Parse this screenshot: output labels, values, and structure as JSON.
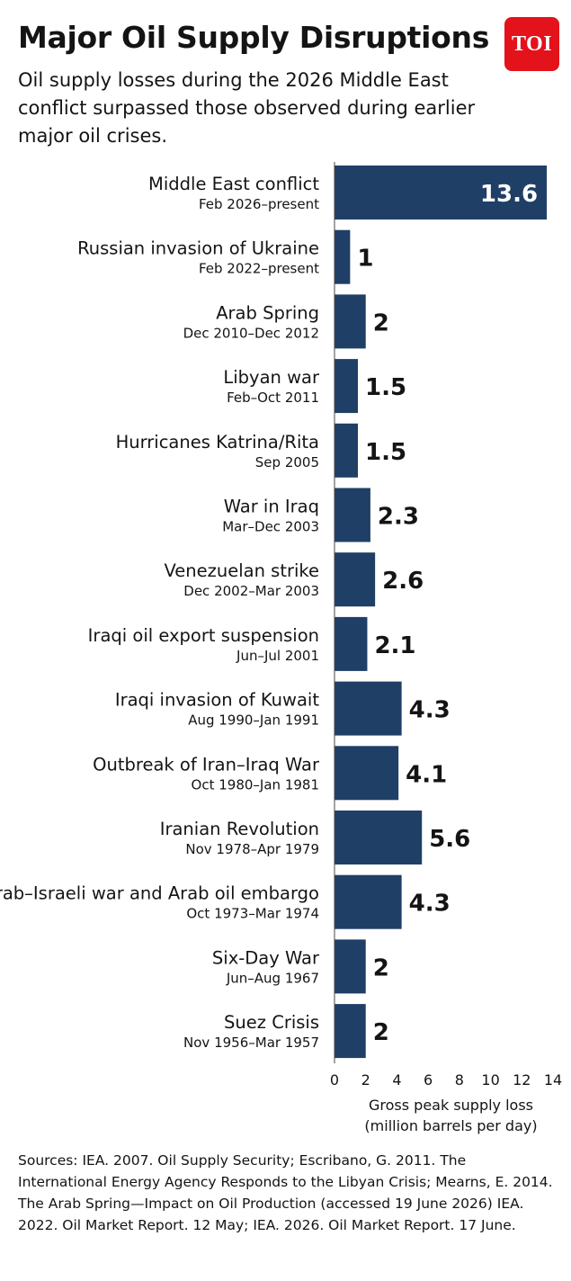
{
  "header": {
    "title": "Major Oil Supply Disruptions",
    "subtitle": "Oil supply losses during the 2026 Middle East conflict surpassed those observed during earlier major oil crises.",
    "logo_text": "TOI"
  },
  "chart_data": {
    "type": "bar",
    "orientation": "horizontal",
    "categories": [
      "Middle East conflict",
      "Russian invasion of Ukraine",
      "Arab Spring",
      "Libyan war",
      "Hurricanes Katrina/Rita",
      "War in Iraq",
      "Venezuelan strike",
      "Iraqi oil export suspension",
      "Iraqi invasion of Kuwait",
      "Outbreak of Iran–Iraq War",
      "Iranian Revolution",
      "Arab–Israeli war and Arab oil embargo",
      "Six-Day War",
      "Suez Crisis"
    ],
    "periods": [
      "Feb 2026–present",
      "Feb 2022–present",
      "Dec 2010–Dec 2012",
      "Feb–Oct 2011",
      "Sep 2005",
      "Mar–Dec 2003",
      "Dec 2002–Mar 2003",
      "Jun–Jul 2001",
      "Aug 1990–Jan 1991",
      "Oct 1980–Jan 1981",
      "Nov 1978–Apr 1979",
      "Oct 1973–Mar 1974",
      "Jun–Aug 1967",
      "Nov 1956–Mar 1957"
    ],
    "values": [
      13.6,
      1,
      2,
      1.5,
      1.5,
      2.3,
      2.6,
      2.1,
      4.3,
      4.1,
      5.6,
      4.3,
      2,
      2
    ],
    "value_labels": [
      "13.6",
      "1",
      "2",
      "1.5",
      "1.5",
      "2.3",
      "2.6",
      "2.1",
      "4.3",
      "4.1",
      "5.6",
      "4.3",
      "2",
      "2"
    ],
    "xlabel_line1": "Gross peak supply loss",
    "xlabel_line2": "(million barrels per day)",
    "xlim": [
      0,
      14
    ],
    "xticks": [
      0,
      2,
      4,
      6,
      8,
      10,
      12,
      14
    ],
    "grid": false,
    "legend": "none",
    "bar_color": "#1f3f66"
  },
  "footer": {
    "sources": "Sources: IEA. 2007. Oil Supply Security; Escribano, G. 2011. The International Energy Agency Responds to the Libyan Crisis; Mearns, E. 2014. The Arab Spring—Impact on Oil Production (accessed 19 June 2026) IEA. 2022. Oil Market Report. 12 May; IEA. 2026. Oil Market Report. 17 June."
  }
}
